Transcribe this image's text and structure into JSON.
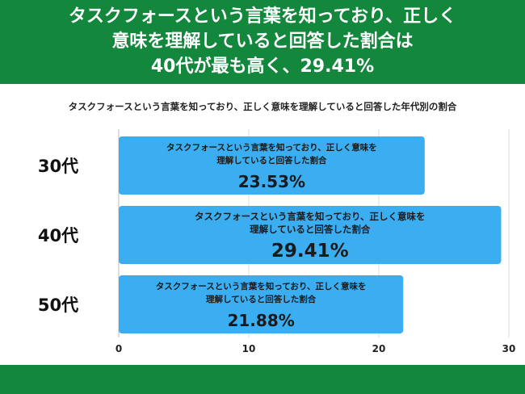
{
  "header": {
    "title_lines": [
      "タスクフォースという言葉を知っており、正しく",
      "意味を理解していると回答した割合は",
      "40代が最も高く、29.41%"
    ]
  },
  "colors": {
    "header_green": "#13873c",
    "bar_blue": "#3badf1",
    "grid": "#dedede"
  },
  "chart_data": {
    "type": "bar",
    "orientation": "horizontal",
    "title": "タスクフォースという言葉を知っており、正しく意味を理解していると回答した年代別の割合",
    "categories": [
      "30代",
      "40代",
      "50代"
    ],
    "values": [
      23.53,
      29.41,
      21.88
    ],
    "value_labels": [
      "23.53%",
      "29.41%",
      "21.88%"
    ],
    "bar_text_lines": [
      [
        "タスクフォースという言葉を知っており、正しく意味を",
        "理解していると回答した割合"
      ],
      [
        "タスクフォースという言葉を知っており、正しく意味を",
        "理解していると回答した割合"
      ],
      [
        "タスクフォースという言葉を知っており、正しく意味を",
        "理解していると回答した割合"
      ]
    ],
    "xlim": [
      0,
      30
    ],
    "xticks": [
      0,
      10,
      20,
      30
    ],
    "xlabel": "",
    "ylabel": "",
    "grid": true,
    "legend": "none"
  }
}
